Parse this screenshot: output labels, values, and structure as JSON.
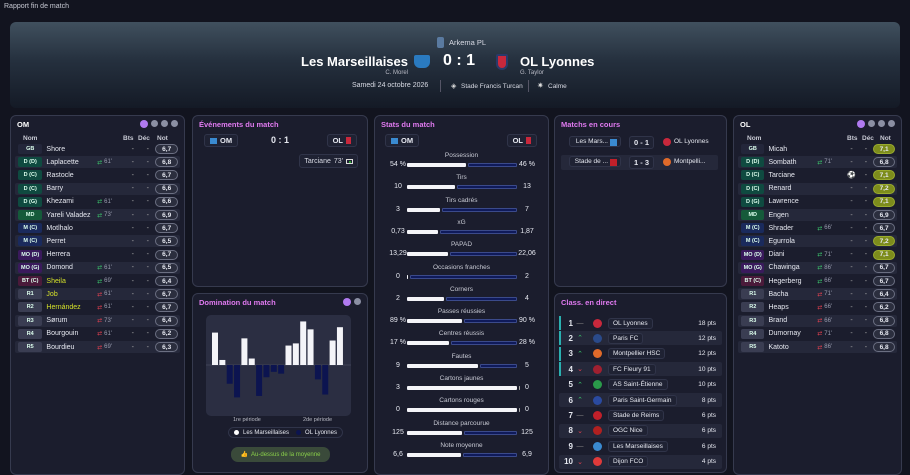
{
  "app_title": "Rapport fin de match",
  "header": {
    "competition": "Arkema PL",
    "home_team": "Les Marseillaises",
    "home_coach": "C. Morel",
    "away_team": "OL Lyonnes",
    "away_coach": "G. Taylor",
    "score": "0 : 1",
    "date": "Samedi 24 octobre 2026",
    "stadium": "Stade Francis Turcan",
    "weather": "Calme"
  },
  "columns": {
    "name": "Nom",
    "goals": "Bts",
    "assists": "Déc",
    "rating": "Not"
  },
  "home_panel": {
    "title": "OM",
    "players": [
      {
        "pos": "GB",
        "name": "Shore",
        "sub": "",
        "bts": "-",
        "dec": "-",
        "rating": "6,7"
      },
      {
        "pos": "D (D)",
        "name": "Laplacette",
        "sub": "61'",
        "bts": "-",
        "dec": "-",
        "rating": "6,8"
      },
      {
        "pos": "D (C)",
        "name": "Rastocle",
        "sub": "",
        "bts": "-",
        "dec": "-",
        "rating": "6,7"
      },
      {
        "pos": "D (C)",
        "name": "Barry",
        "sub": "",
        "bts": "-",
        "dec": "-",
        "rating": "6,6"
      },
      {
        "pos": "D (G)",
        "name": "Khezami",
        "sub": "61'",
        "bts": "-",
        "dec": "-",
        "rating": "6,6"
      },
      {
        "pos": "MD",
        "name": "Yareli Valadez",
        "sub": "73'",
        "bts": "-",
        "dec": "-",
        "rating": "6,9"
      },
      {
        "pos": "M (C)",
        "name": "Motlhalo",
        "sub": "",
        "bts": "-",
        "dec": "-",
        "rating": "6,7"
      },
      {
        "pos": "M (C)",
        "name": "Perret",
        "sub": "",
        "bts": "-",
        "dec": "-",
        "rating": "6,5"
      },
      {
        "pos": "MO (D)",
        "name": "Herrera",
        "sub": "",
        "bts": "-",
        "dec": "-",
        "rating": "6,7"
      },
      {
        "pos": "MO (G)",
        "name": "Domond",
        "sub": "61'",
        "bts": "-",
        "dec": "-",
        "rating": "6,5"
      },
      {
        "pos": "BT (C)",
        "name": "Sheila",
        "sub": "69'",
        "bts": "-",
        "dec": "-",
        "rating": "6,4",
        "highlight": true
      },
      {
        "pos": "R1",
        "name": "Job",
        "sub": "61'",
        "bts": "-",
        "dec": "-",
        "rating": "6,7",
        "highlight": true
      },
      {
        "pos": "R2",
        "name": "Hernández",
        "sub": "61'",
        "bts": "-",
        "dec": "-",
        "rating": "6,7",
        "highlight": true
      },
      {
        "pos": "R3",
        "name": "Sørum",
        "sub": "73'",
        "bts": "-",
        "dec": "-",
        "rating": "6,4"
      },
      {
        "pos": "R4",
        "name": "Bourgouin",
        "sub": "61'",
        "bts": "-",
        "dec": "-",
        "rating": "6,2"
      },
      {
        "pos": "R5",
        "name": "Bourdieu",
        "sub": "69'",
        "bts": "-",
        "dec": "-",
        "rating": "6,3"
      }
    ]
  },
  "away_panel": {
    "title": "OL",
    "players": [
      {
        "pos": "GB",
        "name": "Micah",
        "sub": "",
        "bts": "-",
        "dec": "-",
        "rating": "7,1"
      },
      {
        "pos": "D (D)",
        "name": "Sombath",
        "sub": "71'",
        "bts": "-",
        "dec": "-",
        "rating": "6,8"
      },
      {
        "pos": "D (C)",
        "name": "Tarciane",
        "sub": "",
        "bts": "goal-icon",
        "dec": "-",
        "rating": "7,1"
      },
      {
        "pos": "D (C)",
        "name": "Renard",
        "sub": "",
        "bts": "-",
        "dec": "-",
        "rating": "7,2"
      },
      {
        "pos": "D (G)",
        "name": "Lawrence",
        "sub": "",
        "bts": "-",
        "dec": "-",
        "rating": "7,1"
      },
      {
        "pos": "MD",
        "name": "Engen",
        "sub": "",
        "bts": "-",
        "dec": "-",
        "rating": "6,9"
      },
      {
        "pos": "M (C)",
        "name": "Shrader",
        "sub": "66'",
        "bts": "-",
        "dec": "-",
        "rating": "6,7"
      },
      {
        "pos": "M (C)",
        "name": "Egurrola",
        "sub": "",
        "bts": "-",
        "dec": "-",
        "rating": "7,2"
      },
      {
        "pos": "MO (D)",
        "name": "Diani",
        "sub": "71'",
        "bts": "-",
        "dec": "-",
        "rating": "7,1"
      },
      {
        "pos": "MO (G)",
        "name": "Chawinga",
        "sub": "86'",
        "bts": "-",
        "dec": "-",
        "rating": "6,7"
      },
      {
        "pos": "BT (C)",
        "name": "Hegerberg",
        "sub": "66'",
        "bts": "-",
        "dec": "-",
        "rating": "6,7"
      },
      {
        "pos": "R1",
        "name": "Bacha",
        "sub": "71'",
        "bts": "-",
        "dec": "-",
        "rating": "6,4"
      },
      {
        "pos": "R2",
        "name": "Heaps",
        "sub": "66'",
        "bts": "-",
        "dec": "-",
        "rating": "6,2"
      },
      {
        "pos": "R3",
        "name": "Brand",
        "sub": "66'",
        "bts": "-",
        "dec": "-",
        "rating": "6,8"
      },
      {
        "pos": "R4",
        "name": "Dumornay",
        "sub": "71'",
        "bts": "-",
        "dec": "-",
        "rating": "6,8"
      },
      {
        "pos": "R5",
        "name": "Katoto",
        "sub": "86'",
        "bts": "-",
        "dec": "-",
        "rating": "6,8"
      }
    ]
  },
  "events": {
    "title": "Événements du match",
    "home_short": "OM",
    "away_short": "OL",
    "score": "0 : 1",
    "items": [
      {
        "player": "Tarciane",
        "minute": "73'",
        "side": "away",
        "icon": "goal-icon"
      }
    ]
  },
  "domination": {
    "title": "Domination du match",
    "period1": "1re période",
    "period2": "2de période",
    "legend_home": "Les Marseillaises",
    "legend_away": "OL Lyonnes",
    "verdict": "Au-dessus de la moyenne",
    "values": [
      9,
      1.4,
      -5.2,
      -9,
      7.4,
      1.8,
      -8.6,
      -3.4,
      -1.9,
      -2.4,
      5.4,
      6,
      12.1,
      9.9,
      -4,
      -8.2,
      6.8,
      10.5
    ],
    "colors": {
      "home": "#f4f4f8",
      "away": "#0c1450"
    }
  },
  "stats": {
    "title": "Stats du match",
    "home_short": "OM",
    "away_short": "OL",
    "items": [
      {
        "label": "Possession",
        "home": "54 %",
        "away": "46 %",
        "h": 54,
        "a": 46
      },
      {
        "label": "Tirs",
        "home": "10",
        "away": "13",
        "h": 10,
        "a": 13
      },
      {
        "label": "Tirs cadrés",
        "home": "3",
        "away": "7",
        "h": 3,
        "a": 7
      },
      {
        "label": "xG",
        "home": "0,73",
        "away": "1,87",
        "h": 0.73,
        "a": 1.87
      },
      {
        "label": "PAPAD",
        "home": "13,29",
        "away": "22,06",
        "h": 13.29,
        "a": 22.06
      },
      {
        "label": "Occasions franches",
        "home": "0",
        "away": "2",
        "h": 0,
        "a": 2
      },
      {
        "label": "Corners",
        "home": "2",
        "away": "4",
        "h": 2,
        "a": 4
      },
      {
        "label": "Passes réussies",
        "home": "89 %",
        "away": "90 %",
        "h": 89,
        "a": 90
      },
      {
        "label": "Centres réussis",
        "home": "17 %",
        "away": "28 %",
        "h": 17,
        "a": 28
      },
      {
        "label": "Fautes",
        "home": "9",
        "away": "5",
        "h": 9,
        "a": 5
      },
      {
        "label": "Cartons jaunes",
        "home": "3",
        "away": "0",
        "h": 3,
        "a": 0
      },
      {
        "label": "Cartons rouges",
        "home": "0",
        "away": "0",
        "h": 0,
        "a": 0
      },
      {
        "label": "Distance parcourue",
        "home": "125",
        "away": "125",
        "h": 125,
        "a": 125
      },
      {
        "label": "Note moyenne",
        "home": "6,6",
        "away": "6,9",
        "h": 6.6,
        "a": 6.9
      }
    ]
  },
  "live_matches": {
    "title": "Matchs en cours",
    "items": [
      {
        "home": "Les Mars...",
        "score": "0 - 1",
        "away": "OL Lyonnes"
      },
      {
        "home": "Stade de ...",
        "score": "1 - 3",
        "away": "Montpelli..."
      }
    ]
  },
  "standings": {
    "title": "Class. en direct",
    "rows": [
      {
        "rank": "1",
        "trend": "same",
        "team": "OL Lyonnes",
        "pts": "18 pts",
        "color": "#c8283c"
      },
      {
        "rank": "2",
        "trend": "up",
        "team": "Paris FC",
        "pts": "12 pts",
        "color": "#2a4a8a"
      },
      {
        "rank": "3",
        "trend": "up",
        "team": "Montpellier HSC",
        "pts": "12 pts",
        "color": "#e06a2a"
      },
      {
        "rank": "4",
        "trend": "down",
        "team": "FC Fleury 91",
        "pts": "10 pts",
        "color": "#a02030"
      },
      {
        "rank": "5",
        "trend": "up",
        "team": "AS Saint-Étienne",
        "pts": "10 pts",
        "color": "#2a9a4a"
      },
      {
        "rank": "6",
        "trend": "up",
        "team": "Paris Saint-Germain",
        "pts": "8 pts",
        "color": "#2a4aa0"
      },
      {
        "rank": "7",
        "trend": "same",
        "team": "Stade de Reims",
        "pts": "6 pts",
        "color": "#c0202a"
      },
      {
        "rank": "8",
        "trend": "down",
        "team": "OGC Nice",
        "pts": "6 pts",
        "color": "#b02020"
      },
      {
        "rank": "9",
        "trend": "same",
        "team": "Les Marseillaises",
        "pts": "6 pts",
        "color": "#3a8ad0"
      },
      {
        "rank": "10",
        "trend": "down",
        "team": "Dijon FCO",
        "pts": "4 pts",
        "color": "#e03a3a"
      }
    ]
  },
  "colors": {
    "accent": "#e07af0",
    "good_rating": "#7d8c1c",
    "highlight_name": "#d4e02a",
    "up": "#3ac06a",
    "down": "#e04050",
    "qualif": "#2ab0b0"
  }
}
